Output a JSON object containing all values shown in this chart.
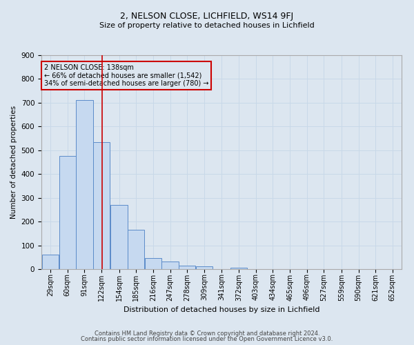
{
  "title1": "2, NELSON CLOSE, LICHFIELD, WS14 9FJ",
  "title2": "Size of property relative to detached houses in Lichfield",
  "xlabel": "Distribution of detached houses by size in Lichfield",
  "ylabel": "Number of detached properties",
  "bin_labels": [
    "29sqm",
    "60sqm",
    "91sqm",
    "122sqm",
    "154sqm",
    "185sqm",
    "216sqm",
    "247sqm",
    "278sqm",
    "309sqm",
    "341sqm",
    "372sqm",
    "403sqm",
    "434sqm",
    "465sqm",
    "496sqm",
    "527sqm",
    "559sqm",
    "590sqm",
    "621sqm",
    "652sqm"
  ],
  "bin_edges": [
    29,
    60,
    91,
    122,
    154,
    185,
    216,
    247,
    278,
    309,
    341,
    372,
    403,
    434,
    465,
    496,
    527,
    559,
    590,
    621,
    652
  ],
  "bar_heights": [
    60,
    475,
    710,
    535,
    270,
    165,
    47,
    33,
    15,
    13,
    0,
    7,
    0,
    0,
    0,
    0,
    0,
    0,
    0,
    0
  ],
  "bar_color": "#c6d9f0",
  "bar_edge_color": "#5b8bc9",
  "grid_color": "#c8d8e8",
  "property_size": 138,
  "vline_color": "#cc0000",
  "annotation_line1": "2 NELSON CLOSE: 138sqm",
  "annotation_line2": "← 66% of detached houses are smaller (1,542)",
  "annotation_line3": "34% of semi-detached houses are larger (780) →",
  "annotation_box_color": "#cc0000",
  "ylim": [
    0,
    900
  ],
  "yticks": [
    0,
    100,
    200,
    300,
    400,
    500,
    600,
    700,
    800,
    900
  ],
  "footer1": "Contains HM Land Registry data © Crown copyright and database right 2024.",
  "footer2": "Contains public sector information licensed under the Open Government Licence v3.0.",
  "bg_color": "#dce6f0",
  "title1_fontsize": 9,
  "title2_fontsize": 8,
  "xlabel_fontsize": 8,
  "ylabel_fontsize": 7.5,
  "tick_fontsize": 7,
  "annotation_fontsize": 7,
  "footer_fontsize": 6
}
